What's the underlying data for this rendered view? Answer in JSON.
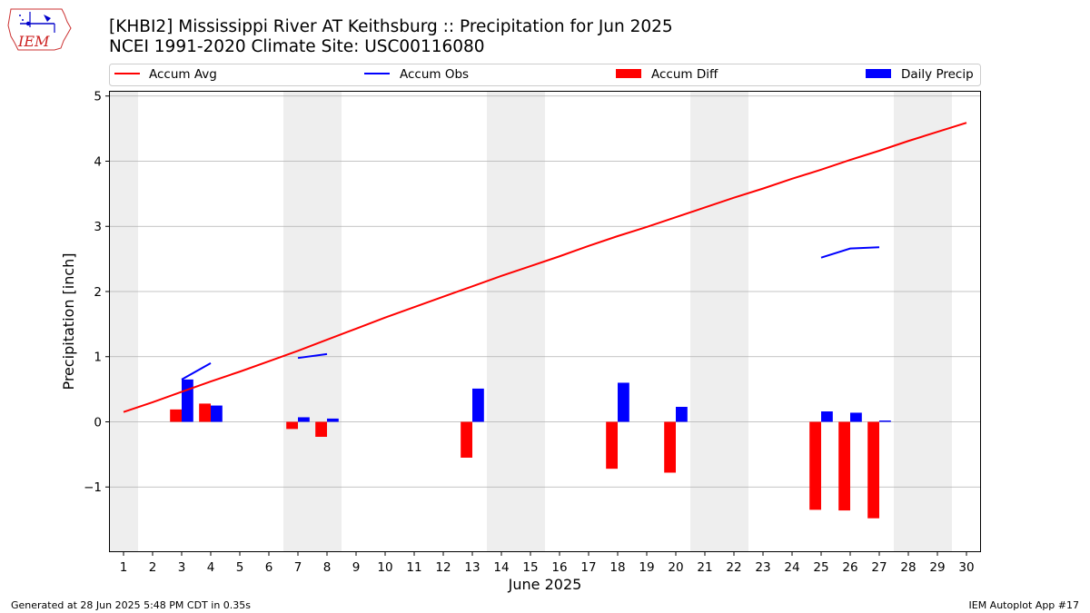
{
  "header": {
    "title_line1": "[KHBI2] Mississippi River  AT Keithsburg :: Precipitation for Jun 2025",
    "title_line2": "NCEI 1991-2020 Climate Site: USC00116080",
    "logo_text": "IEM"
  },
  "footer": {
    "generated": "Generated at 28 Jun 2025 5:48 PM CDT in 0.35s",
    "app": "IEM Autoplot App #17"
  },
  "colors": {
    "avg": "#ff0000",
    "obs": "#0000ff",
    "diff": "#ff0000",
    "daily": "#0000ff",
    "weekend_shade": "#eeeeee",
    "grid": "#b0b0b0"
  },
  "chart_data": {
    "type": "bar",
    "title": "[KHBI2] Mississippi River  AT Keithsburg :: Precipitation for Jun 2025",
    "subtitle": "NCEI 1991-2020 Climate Site: USC00116080",
    "xlabel": "June 2025",
    "ylabel": "Precipitation [inch]",
    "xlim": [
      0.5,
      30.5
    ],
    "ylim": [
      -2.0,
      5.08
    ],
    "y_ticks": [
      -1,
      0,
      1,
      2,
      3,
      4,
      5
    ],
    "y_tick_labels": [
      "−1",
      "0",
      "1",
      "2",
      "3",
      "4",
      "5"
    ],
    "x_ticks": [
      1,
      2,
      3,
      4,
      5,
      6,
      7,
      8,
      9,
      10,
      11,
      12,
      13,
      14,
      15,
      16,
      17,
      18,
      19,
      20,
      21,
      22,
      23,
      24,
      25,
      26,
      27,
      28,
      29,
      30
    ],
    "x_tick_labels": [
      "1",
      "2",
      "3",
      "4",
      "5",
      "6",
      "7",
      "8",
      "9",
      "10",
      "11",
      "12",
      "13",
      "14",
      "15",
      "16",
      "17",
      "18",
      "19",
      "20",
      "21",
      "22",
      "23",
      "24",
      "25",
      "26",
      "27",
      "28",
      "29",
      "30"
    ],
    "grid": "horizontal",
    "legend_position": "top",
    "weekend_days": [
      1,
      7,
      8,
      14,
      15,
      21,
      22,
      28,
      29
    ],
    "series": [
      {
        "name": "Accum Avg",
        "kind": "line",
        "x": [
          1,
          2,
          3,
          4,
          5,
          6,
          7,
          8,
          9,
          10,
          11,
          12,
          13,
          14,
          15,
          16,
          17,
          18,
          19,
          20,
          21,
          22,
          23,
          24,
          25,
          26,
          27,
          28,
          29,
          30
        ],
        "values": [
          0.15,
          0.3,
          0.46,
          0.62,
          0.77,
          0.93,
          1.09,
          1.26,
          1.43,
          1.6,
          1.76,
          1.92,
          2.08,
          2.24,
          2.39,
          2.54,
          2.7,
          2.85,
          2.99,
          3.14,
          3.29,
          3.44,
          3.58,
          3.73,
          3.87,
          4.02,
          4.16,
          4.31,
          4.45,
          4.59
        ]
      },
      {
        "name": "Accum Obs",
        "kind": "line",
        "segments": [
          {
            "x": [
              3,
              4
            ],
            "values": [
              0.65,
              0.9
            ]
          },
          {
            "x": [
              7,
              8
            ],
            "values": [
              0.98,
              1.04
            ]
          },
          {
            "x": [
              25,
              26,
              27
            ],
            "values": [
              2.52,
              2.66,
              2.68
            ]
          }
        ]
      },
      {
        "name": "Accum Diff",
        "kind": "bar",
        "x": [
          3,
          4,
          7,
          8,
          13,
          18,
          20,
          25,
          26,
          27
        ],
        "values": [
          0.19,
          0.28,
          -0.11,
          -0.23,
          -0.55,
          -0.72,
          -0.78,
          -1.35,
          -1.36,
          -1.48
        ]
      },
      {
        "name": "Daily Precip",
        "kind": "bar",
        "x": [
          3,
          4,
          7,
          8,
          13,
          18,
          20,
          25,
          26,
          27
        ],
        "values": [
          0.65,
          0.25,
          0.07,
          0.05,
          0.51,
          0.6,
          0.23,
          0.16,
          0.14,
          0.02
        ]
      }
    ]
  }
}
